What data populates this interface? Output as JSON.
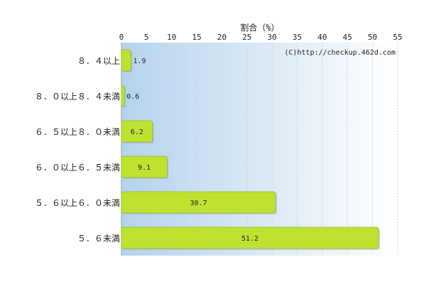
{
  "chart_data": {
    "type": "bar",
    "orientation": "horizontal",
    "xlabel": "割合（%）",
    "credit": "(C)http://checkup.462d.com",
    "categories": [
      "８．４以上",
      "８．０以上８．４未満",
      "６．５以上８．０未満",
      "６．０以上６．５未満",
      "５．６以上６．０未満",
      "５．６未満"
    ],
    "values": [
      1.9,
      0.6,
      6.2,
      9.1,
      30.7,
      51.2
    ],
    "value_labels": [
      "1.9",
      "0.6",
      "6.2",
      "9.1",
      "30.7",
      "51.2"
    ],
    "xlim": [
      0,
      55
    ],
    "xticks": [
      0,
      5,
      10,
      15,
      20,
      25,
      30,
      35,
      40,
      45,
      50,
      55
    ],
    "tick_labels": [
      "0",
      "5",
      "10",
      "15",
      "20",
      "25",
      "30",
      "35",
      "40",
      "45",
      "50",
      "55"
    ],
    "grid": true,
    "axis_position": "top",
    "colors": {
      "bar": "#bfe232",
      "bar_edge": "#98b81c",
      "plot_bg_left": "#b5d3ec",
      "plot_bg_right": "#ffffff",
      "grid": "#c6d3df",
      "text": "#222222"
    }
  }
}
